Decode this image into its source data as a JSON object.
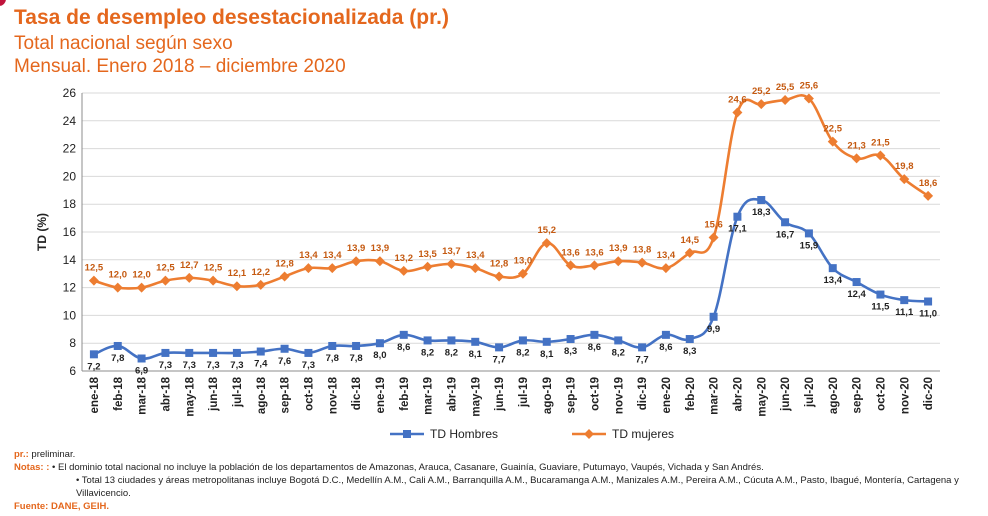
{
  "header": {
    "title": "Tasa de desempleo desestacionalizada (pr.)",
    "subtitle1": "Total nacional según sexo",
    "subtitle2": "Mensual. Enero 2018 – diciembre 2020"
  },
  "colors": {
    "accent": "#e4671d",
    "hombres": "#4472c4",
    "mujeres": "#ed7d31",
    "grid": "#d9d9d9"
  },
  "chart_data": {
    "type": "line",
    "ylabel": "TD (%)",
    "ylim": [
      6,
      26
    ],
    "yticks": [
      "6",
      "8",
      "10",
      "12",
      "14",
      "16",
      "18",
      "20",
      "22",
      "24",
      "26"
    ],
    "grid": "horizontal",
    "legend_placement": "bottom",
    "categories": [
      "ene-18",
      "feb-18",
      "mar-18",
      "abr-18",
      "may-18",
      "jun-18",
      "jul-18",
      "ago-18",
      "sep-18",
      "oct-18",
      "nov-18",
      "dic-18",
      "ene-19",
      "feb-19",
      "mar-19",
      "abr-19",
      "may-19",
      "jun-19",
      "jul-19",
      "ago-19",
      "sep-19",
      "oct-19",
      "nov-19",
      "dic-19",
      "ene-20",
      "feb-20",
      "mar-20",
      "abr-20",
      "may-20",
      "jun-20",
      "jul-20",
      "ago-20",
      "sep-20",
      "oct-20",
      "nov-20",
      "dic-20"
    ],
    "series": [
      {
        "name": "TD Hombres",
        "values": [
          7.2,
          7.8,
          6.9,
          7.3,
          7.3,
          7.3,
          7.3,
          7.4,
          7.6,
          7.3,
          7.8,
          7.8,
          8.0,
          8.6,
          8.2,
          8.2,
          8.1,
          7.7,
          8.2,
          8.1,
          8.3,
          8.6,
          8.2,
          7.7,
          8.6,
          8.3,
          9.9,
          17.1,
          18.3,
          16.7,
          15.9,
          13.4,
          12.4,
          11.5,
          11.1,
          11.0
        ],
        "labels": [
          "7,2",
          "7,8",
          "6,9",
          "7,3",
          "7,3",
          "7,3",
          "7,3",
          "7,4",
          "7,6",
          "7,3",
          "7,8",
          "7,8",
          "8,0",
          "8,6",
          "8,2",
          "8,2",
          "8,1",
          "7,7",
          "8,2",
          "8,1",
          "8,3",
          "8,6",
          "8,2",
          "7,7",
          "8,6",
          "8,3",
          "9,9",
          "17,1",
          "18,3",
          "16,7",
          "15,9",
          "13,4",
          "12,4",
          "11,5",
          "11,1",
          "11,0"
        ]
      },
      {
        "name": "TD mujeres",
        "values": [
          12.5,
          12.0,
          12.0,
          12.5,
          12.7,
          12.5,
          12.1,
          12.2,
          12.8,
          13.4,
          13.4,
          13.9,
          13.9,
          13.2,
          13.5,
          13.7,
          13.4,
          12.8,
          13.0,
          15.2,
          13.6,
          13.6,
          13.9,
          13.8,
          13.4,
          14.5,
          15.6,
          24.6,
          25.2,
          25.5,
          25.6,
          22.5,
          21.3,
          21.5,
          19.8,
          18.6
        ],
        "labels": [
          "12,5",
          "12,0",
          "12,0",
          "12,5",
          "12,7",
          "12,5",
          "12,1",
          "12,2",
          "12,8",
          "13,4",
          "13,4",
          "13,9",
          "13,9",
          "13,2",
          "13,5",
          "13,7",
          "13,4",
          "12,8",
          "13,0",
          "15,2",
          "13,6",
          "13,6",
          "13,9",
          "13,8",
          "13,4",
          "14,5",
          "15,6",
          "24,6",
          "25,2",
          "25,5",
          "25,6",
          "22,5",
          "21,3",
          "21,5",
          "19,8",
          "18,6"
        ]
      }
    ]
  },
  "notes": {
    "pr_label": "pr.:",
    "pr_text": " preliminar.",
    "notas_label": "Notas: :",
    "note1": " • El dominio total nacional no incluye la población de los departamentos de Amazonas, Arauca, Casanare, Guainía, Guaviare, Putumayo, Vaupés, Vichada y San Andrés.",
    "note2": "• Total 13 ciudades y áreas metropolitanas incluye Bogotá D.C., Medellín A.M., Cali A.M., Barranquilla A.M., Bucaramanga A.M., Manizales A.M., Pereira A.M., Cúcuta A.M., Pasto, Ibagué, Montería, Cartagena y Villavicencio.",
    "fuente": "Fuente: DANE, GEIH."
  }
}
